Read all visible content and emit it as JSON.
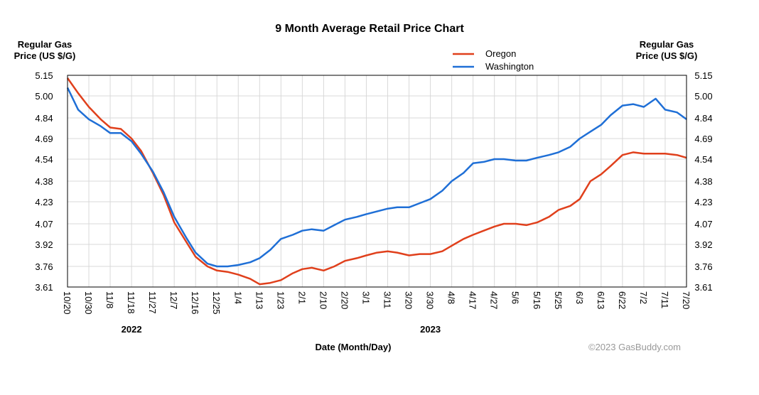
{
  "chart_data": {
    "type": "line",
    "title": "9 Month Average Retail Price Chart",
    "ylabel_left": [
      "Regular Gas",
      "Price (US $/G)"
    ],
    "ylabel_right": [
      "Regular Gas",
      "Price (US $/G)"
    ],
    "xlabel": "Date (Month/Day)",
    "credit": "©2023 GasBuddy.com",
    "ylim": [
      3.61,
      5.15
    ],
    "yticks": [
      "5.15",
      "5.00",
      "4.84",
      "4.69",
      "4.54",
      "4.38",
      "4.23",
      "4.07",
      "3.92",
      "3.76",
      "3.61"
    ],
    "x_labels": [
      "10/20",
      "10/30",
      "11/8",
      "11/18",
      "11/27",
      "12/7",
      "12/16",
      "12/25",
      "1/4",
      "1/13",
      "1/23",
      "2/1",
      "2/10",
      "2/20",
      "3/1",
      "3/11",
      "3/20",
      "3/30",
      "4/8",
      "4/17",
      "4/27",
      "5/6",
      "5/16",
      "5/25",
      "6/3",
      "6/13",
      "6/22",
      "7/2",
      "7/11",
      "7/20"
    ],
    "year_labels": [
      {
        "text": "2022",
        "at": "11/18"
      },
      {
        "text": "2023",
        "at": "3/30"
      }
    ],
    "grid": true,
    "legend_position": "top-right",
    "series": [
      {
        "name": "Oregon",
        "color": "#e0401c",
        "x": [
          "10/20",
          "10/25",
          "10/30",
          "11/4",
          "11/8",
          "11/13",
          "11/18",
          "11/22",
          "11/27",
          "12/2",
          "12/7",
          "12/12",
          "12/16",
          "12/21",
          "12/25",
          "12/30",
          "1/4",
          "1/9",
          "1/13",
          "1/18",
          "1/23",
          "1/28",
          "2/1",
          "2/5",
          "2/10",
          "2/15",
          "2/20",
          "2/25",
          "3/1",
          "3/6",
          "3/11",
          "3/15",
          "3/20",
          "3/25",
          "3/30",
          "4/4",
          "4/8",
          "4/13",
          "4/17",
          "4/22",
          "4/27",
          "5/1",
          "5/6",
          "5/11",
          "5/16",
          "5/21",
          "5/25",
          "5/30",
          "6/3",
          "6/8",
          "6/13",
          "6/17",
          "6/22",
          "6/27",
          "7/2",
          "7/7",
          "7/11",
          "7/16",
          "7/20"
        ],
        "values": [
          5.13,
          5.02,
          4.92,
          4.83,
          4.77,
          4.76,
          4.69,
          4.6,
          4.44,
          4.28,
          4.08,
          3.94,
          3.83,
          3.76,
          3.73,
          3.72,
          3.7,
          3.67,
          3.63,
          3.64,
          3.66,
          3.71,
          3.74,
          3.75,
          3.73,
          3.76,
          3.8,
          3.82,
          3.84,
          3.86,
          3.87,
          3.86,
          3.84,
          3.85,
          3.85,
          3.87,
          3.91,
          3.96,
          3.99,
          4.02,
          4.05,
          4.07,
          4.07,
          4.06,
          4.08,
          4.12,
          4.17,
          4.2,
          4.25,
          4.38,
          4.43,
          4.49,
          4.57,
          4.59,
          4.58,
          4.58,
          4.58,
          4.57,
          4.55
        ]
      },
      {
        "name": "Washington",
        "color": "#1f6fd6",
        "x": [
          "10/20",
          "10/25",
          "10/30",
          "11/4",
          "11/8",
          "11/13",
          "11/18",
          "11/22",
          "11/27",
          "12/2",
          "12/7",
          "12/12",
          "12/16",
          "12/21",
          "12/25",
          "12/30",
          "1/4",
          "1/9",
          "1/13",
          "1/18",
          "1/23",
          "1/28",
          "2/1",
          "2/5",
          "2/10",
          "2/15",
          "2/20",
          "2/25",
          "3/1",
          "3/6",
          "3/11",
          "3/15",
          "3/20",
          "3/25",
          "3/30",
          "4/4",
          "4/8",
          "4/13",
          "4/17",
          "4/22",
          "4/27",
          "5/1",
          "5/6",
          "5/11",
          "5/16",
          "5/21",
          "5/25",
          "5/30",
          "6/3",
          "6/8",
          "6/13",
          "6/17",
          "6/22",
          "6/27",
          "7/2",
          "7/7",
          "7/11",
          "7/16",
          "7/20"
        ],
        "values": [
          5.06,
          4.9,
          4.83,
          4.78,
          4.73,
          4.73,
          4.67,
          4.58,
          4.45,
          4.3,
          4.12,
          3.97,
          3.86,
          3.78,
          3.76,
          3.76,
          3.77,
          3.79,
          3.82,
          3.88,
          3.96,
          3.99,
          4.02,
          4.03,
          4.02,
          4.06,
          4.1,
          4.12,
          4.14,
          4.16,
          4.18,
          4.19,
          4.19,
          4.22,
          4.25,
          4.31,
          4.38,
          4.44,
          4.51,
          4.52,
          4.54,
          4.54,
          4.53,
          4.53,
          4.55,
          4.57,
          4.59,
          4.63,
          4.69,
          4.74,
          4.79,
          4.86,
          4.93,
          4.94,
          4.92,
          4.98,
          4.9,
          4.88,
          4.83
        ]
      }
    ]
  }
}
